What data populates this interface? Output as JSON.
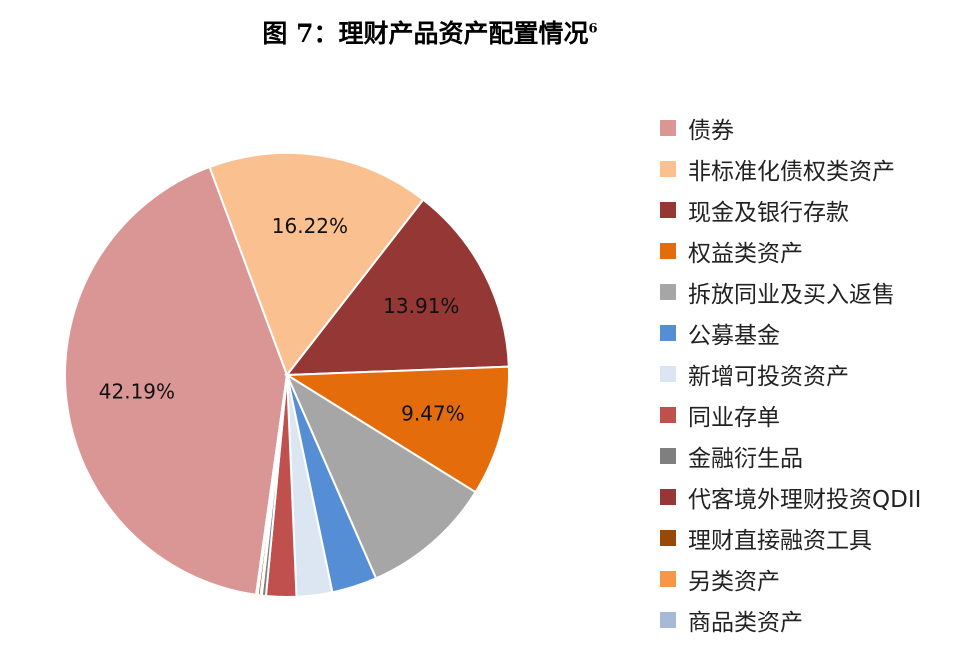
{
  "chart_data": {
    "type": "pie",
    "title": "图 7：理财产品资产配置情况",
    "title_superscript": "6",
    "legend_position": "right",
    "slices": [
      {
        "name": "债券",
        "value": 42.19,
        "label": "42.19%",
        "color": "#d99694"
      },
      {
        "name": "非标准化债权类资产",
        "value": 16.22,
        "label": "16.22%",
        "color": "#fac090"
      },
      {
        "name": "现金及银行存款",
        "value": 13.91,
        "label": "13.91%",
        "color": "#953735"
      },
      {
        "name": "权益类资产",
        "value": 9.47,
        "label": "9.47%",
        "color": "#e46c0a"
      },
      {
        "name": "拆放同业及买入返售",
        "value": 9.6,
        "label": "",
        "color": "#a6a6a6"
      },
      {
        "name": "公募基金",
        "value": 3.3,
        "label": "",
        "color": "#558ed5"
      },
      {
        "name": "新增可投资资产",
        "value": 2.6,
        "label": "",
        "color": "#dce6f2"
      },
      {
        "name": "同业存单",
        "value": 2.2,
        "label": "",
        "color": "#c0504d"
      },
      {
        "name": "金融衍生品",
        "value": 0.3,
        "label": "",
        "color": "#7f7f7f"
      },
      {
        "name": "代客境外理财投资QDII",
        "value": 0.1,
        "label": "",
        "color": "#953735"
      },
      {
        "name": "理财直接融资工具",
        "value": 0.2,
        "label": "",
        "color": "#984807"
      },
      {
        "name": "另类资产",
        "value": 0.1,
        "label": "",
        "color": "#f79646"
      },
      {
        "name": "商品类资产",
        "value": 0.01,
        "label": "",
        "color": "#a6b9d6"
      }
    ]
  }
}
